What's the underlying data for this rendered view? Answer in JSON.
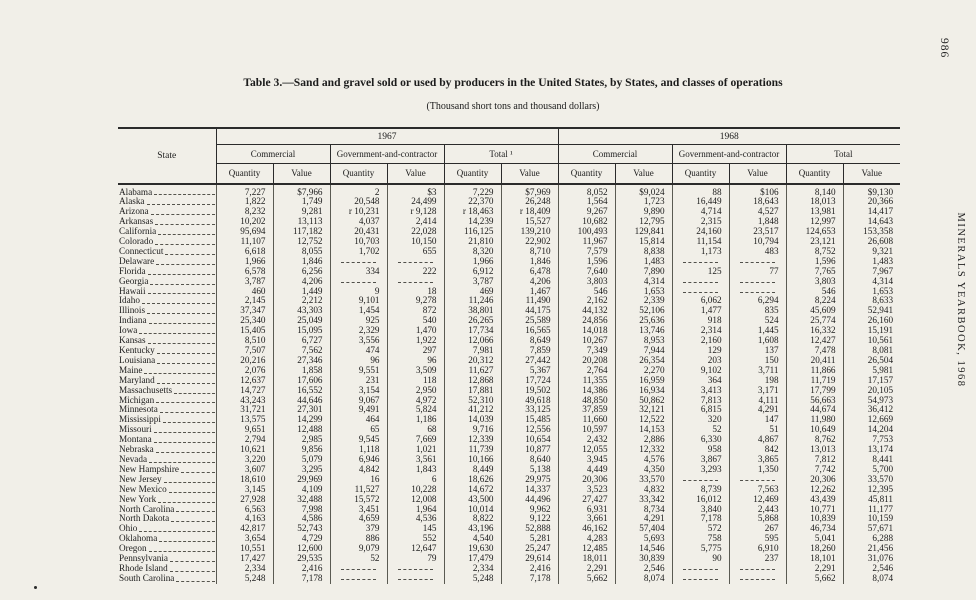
{
  "page": {
    "page_number": "986",
    "running_header": "MINERALS YEARBOOK, 1968",
    "title": "Table 3.—Sand and gravel sold or used by producers in the United States, by States, and classes of operations",
    "subtitle": "(Thousand short tons and thousand dollars)"
  },
  "table": {
    "state_header": "State",
    "measure_headers": [
      "Quantity",
      "Value"
    ],
    "year_groups": [
      {
        "year": "1967",
        "groups": [
          "Commercial",
          "Government-and-contractor",
          "Total ¹"
        ]
      },
      {
        "year": "1968",
        "groups": [
          "Commercial",
          "Government-and-contractor",
          "Total"
        ]
      }
    ],
    "rows": [
      {
        "state": "Alabama",
        "values": [
          "7,227",
          "$7,966",
          "2",
          "$3",
          "7,229",
          "$7,969",
          "8,052",
          "$9,024",
          "88",
          "$106",
          "8,140",
          "$9,130"
        ]
      },
      {
        "state": "Alaska",
        "values": [
          "1,822",
          "1,749",
          "20,548",
          "24,499",
          "22,370",
          "26,248",
          "1,564",
          "1,723",
          "16,449",
          "18,643",
          "18,013",
          "20,366"
        ]
      },
      {
        "state": "Arizona",
        "values": [
          "8,232",
          "9,281",
          "r 10,231",
          "r 9,128",
          "r 18,463",
          "r 18,409",
          "9,267",
          "9,890",
          "4,714",
          "4,527",
          "13,981",
          "14,417"
        ]
      },
      {
        "state": "Arkansas",
        "values": [
          "10,202",
          "13,113",
          "4,037",
          "2,414",
          "14,239",
          "15,527",
          "10,682",
          "12,795",
          "2,315",
          "1,848",
          "12,997",
          "14,643"
        ]
      },
      {
        "state": "California",
        "values": [
          "95,694",
          "117,182",
          "20,431",
          "22,028",
          "116,125",
          "139,210",
          "100,493",
          "129,841",
          "24,160",
          "23,517",
          "124,653",
          "153,358"
        ]
      },
      {
        "state": "Colorado",
        "values": [
          "11,107",
          "12,752",
          "10,703",
          "10,150",
          "21,810",
          "22,902",
          "11,967",
          "15,814",
          "11,154",
          "10,794",
          "23,121",
          "26,608"
        ]
      },
      {
        "state": "Connecticut",
        "values": [
          "6,618",
          "8,055",
          "1,702",
          "655",
          "8,320",
          "8,710",
          "7,579",
          "8,838",
          "1,173",
          "483",
          "8,752",
          "9,321"
        ]
      },
      {
        "state": "Delaware",
        "values": [
          "1,966",
          "1,846",
          "",
          "",
          "1,966",
          "1,846",
          "1,596",
          "1,483",
          "",
          "",
          "1,596",
          "1,483"
        ]
      },
      {
        "state": "Florida",
        "values": [
          "6,578",
          "6,256",
          "334",
          "222",
          "6,912",
          "6,478",
          "7,640",
          "7,890",
          "125",
          "77",
          "7,765",
          "7,967"
        ]
      },
      {
        "state": "Georgia",
        "values": [
          "3,787",
          "4,206",
          "",
          "",
          "3,787",
          "4,206",
          "3,803",
          "4,314",
          "",
          "",
          "3,803",
          "4,314"
        ]
      },
      {
        "state": "Hawaii",
        "values": [
          "460",
          "1,449",
          "9",
          "18",
          "469",
          "1,467",
          "546",
          "1,653",
          "",
          "",
          "546",
          "1,653"
        ]
      },
      {
        "state": "Idaho",
        "values": [
          "2,145",
          "2,212",
          "9,101",
          "9,278",
          "11,246",
          "11,490",
          "2,162",
          "2,339",
          "6,062",
          "6,294",
          "8,224",
          "8,633"
        ]
      },
      {
        "state": "Illinois",
        "values": [
          "37,347",
          "43,303",
          "1,454",
          "872",
          "38,801",
          "44,175",
          "44,132",
          "52,106",
          "1,477",
          "835",
          "45,609",
          "52,941"
        ]
      },
      {
        "state": "Indiana",
        "values": [
          "25,340",
          "25,049",
          "925",
          "540",
          "26,265",
          "25,589",
          "24,856",
          "25,636",
          "918",
          "524",
          "25,774",
          "26,160"
        ]
      },
      {
        "state": "Iowa",
        "values": [
          "15,405",
          "15,095",
          "2,329",
          "1,470",
          "17,734",
          "16,565",
          "14,018",
          "13,746",
          "2,314",
          "1,445",
          "16,332",
          "15,191"
        ]
      },
      {
        "state": "Kansas",
        "values": [
          "8,510",
          "6,727",
          "3,556",
          "1,922",
          "12,066",
          "8,649",
          "10,267",
          "8,953",
          "2,160",
          "1,608",
          "12,427",
          "10,561"
        ]
      },
      {
        "state": "Kentucky",
        "values": [
          "7,507",
          "7,562",
          "474",
          "297",
          "7,981",
          "7,859",
          "7,349",
          "7,944",
          "129",
          "137",
          "7,478",
          "8,081"
        ]
      },
      {
        "state": "Louisiana",
        "values": [
          "20,216",
          "27,346",
          "96",
          "96",
          "20,312",
          "27,442",
          "20,208",
          "26,354",
          "203",
          "150",
          "20,411",
          "26,504"
        ]
      },
      {
        "state": "Maine",
        "values": [
          "2,076",
          "1,858",
          "9,551",
          "3,509",
          "11,627",
          "5,367",
          "2,764",
          "2,270",
          "9,102",
          "3,711",
          "11,866",
          "5,981"
        ]
      },
      {
        "state": "Maryland",
        "values": [
          "12,637",
          "17,606",
          "231",
          "118",
          "12,868",
          "17,724",
          "11,355",
          "16,959",
          "364",
          "198",
          "11,719",
          "17,157"
        ]
      },
      {
        "state": "Massachusetts",
        "values": [
          "14,727",
          "16,552",
          "3,154",
          "2,950",
          "17,881",
          "19,502",
          "14,386",
          "16,934",
          "3,413",
          "3,171",
          "17,799",
          "20,105"
        ]
      },
      {
        "state": "Michigan",
        "values": [
          "43,243",
          "44,646",
          "9,067",
          "4,972",
          "52,310",
          "49,618",
          "48,850",
          "50,862",
          "7,813",
          "4,111",
          "56,663",
          "54,973"
        ]
      },
      {
        "state": "Minnesota",
        "values": [
          "31,721",
          "27,301",
          "9,491",
          "5,824",
          "41,212",
          "33,125",
          "37,859",
          "32,121",
          "6,815",
          "4,291",
          "44,674",
          "36,412"
        ]
      },
      {
        "state": "Mississippi",
        "values": [
          "13,575",
          "14,299",
          "464",
          "1,186",
          "14,039",
          "15,485",
          "11,660",
          "12,522",
          "320",
          "147",
          "11,980",
          "12,669"
        ]
      },
      {
        "state": "Missouri",
        "values": [
          "9,651",
          "12,488",
          "65",
          "68",
          "9,716",
          "12,556",
          "10,597",
          "14,153",
          "52",
          "51",
          "10,649",
          "14,204"
        ]
      },
      {
        "state": "Montana",
        "values": [
          "2,794",
          "2,985",
          "9,545",
          "7,669",
          "12,339",
          "10,654",
          "2,432",
          "2,886",
          "6,330",
          "4,867",
          "8,762",
          "7,753"
        ]
      },
      {
        "state": "Nebraska",
        "values": [
          "10,621",
          "9,856",
          "1,118",
          "1,021",
          "11,739",
          "10,877",
          "12,055",
          "12,332",
          "958",
          "842",
          "13,013",
          "13,174"
        ]
      },
      {
        "state": "Nevada",
        "values": [
          "3,220",
          "5,079",
          "6,946",
          "3,561",
          "10,166",
          "8,640",
          "3,945",
          "4,576",
          "3,867",
          "3,865",
          "7,812",
          "8,441"
        ]
      },
      {
        "state": "New Hampshire",
        "values": [
          "3,607",
          "3,295",
          "4,842",
          "1,843",
          "8,449",
          "5,138",
          "4,449",
          "4,350",
          "3,293",
          "1,350",
          "7,742",
          "5,700"
        ]
      },
      {
        "state": "New Jersey",
        "values": [
          "18,610",
          "29,969",
          "16",
          "6",
          "18,626",
          "29,975",
          "20,306",
          "33,570",
          "",
          "",
          "20,306",
          "33,570"
        ]
      },
      {
        "state": "New Mexico",
        "values": [
          "3,145",
          "4,109",
          "11,527",
          "10,228",
          "14,672",
          "14,337",
          "3,523",
          "4,832",
          "8,739",
          "7,563",
          "12,262",
          "12,395"
        ]
      },
      {
        "state": "New York",
        "values": [
          "27,928",
          "32,488",
          "15,572",
          "12,008",
          "43,500",
          "44,496",
          "27,427",
          "33,342",
          "16,012",
          "12,469",
          "43,439",
          "45,811"
        ]
      },
      {
        "state": "North Carolina",
        "values": [
          "6,563",
          "7,998",
          "3,451",
          "1,964",
          "10,014",
          "9,962",
          "6,931",
          "8,734",
          "3,840",
          "2,443",
          "10,771",
          "11,177"
        ]
      },
      {
        "state": "North Dakota",
        "values": [
          "4,163",
          "4,586",
          "4,659",
          "4,536",
          "8,822",
          "9,122",
          "3,661",
          "4,291",
          "7,178",
          "5,868",
          "10,839",
          "10,159"
        ]
      },
      {
        "state": "Ohio",
        "values": [
          "42,817",
          "52,743",
          "379",
          "145",
          "43,196",
          "52,888",
          "46,162",
          "57,404",
          "572",
          "267",
          "46,734",
          "57,671"
        ]
      },
      {
        "state": "Oklahoma",
        "values": [
          "3,654",
          "4,729",
          "886",
          "552",
          "4,540",
          "5,281",
          "4,283",
          "5,693",
          "758",
          "595",
          "5,041",
          "6,288"
        ]
      },
      {
        "state": "Oregon",
        "values": [
          "10,551",
          "12,600",
          "9,079",
          "12,647",
          "19,630",
          "25,247",
          "12,485",
          "14,546",
          "5,775",
          "6,910",
          "18,260",
          "21,456"
        ]
      },
      {
        "state": "Pennsylvania",
        "values": [
          "17,427",
          "29,535",
          "52",
          "79",
          "17,479",
          "29,614",
          "18,011",
          "30,839",
          "90",
          "237",
          "18,101",
          "31,076"
        ]
      },
      {
        "state": "Rhode Island",
        "values": [
          "2,334",
          "2,416",
          "",
          "",
          "2,334",
          "2,416",
          "2,291",
          "2,546",
          "",
          "",
          "2,291",
          "2,546"
        ]
      },
      {
        "state": "South Carolina",
        "values": [
          "5,248",
          "7,178",
          "",
          "",
          "5,248",
          "7,178",
          "5,662",
          "8,074",
          "",
          "",
          "5,662",
          "8,074"
        ]
      }
    ]
  }
}
